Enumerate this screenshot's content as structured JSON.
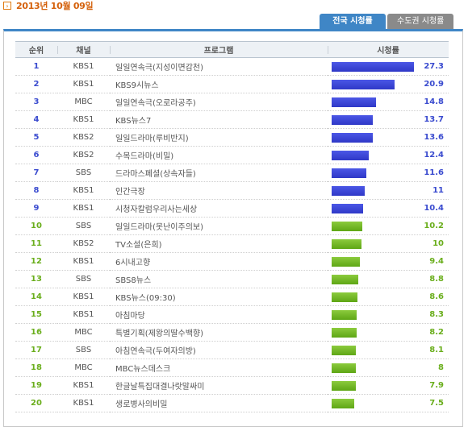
{
  "date": "2013년 10월 09일",
  "tabs": [
    {
      "label": "전국 시청률",
      "active": true
    },
    {
      "label": "수도권 시청률",
      "active": false
    }
  ],
  "columns": {
    "rank": "순위",
    "channel": "채널",
    "program": "프로그램",
    "rating": "시청률"
  },
  "colors": {
    "top_bar": "#3a45d8",
    "rest_bar": "#74b82a",
    "tab_active": "#3f86c6"
  },
  "max_rating": 27.3,
  "rows": [
    {
      "rank": "1",
      "channel": "KBS1",
      "program": "일일연속극(지성이면감천)",
      "rating": 27.3
    },
    {
      "rank": "2",
      "channel": "KBS1",
      "program": "KBS9시뉴스",
      "rating": 20.9
    },
    {
      "rank": "3",
      "channel": "MBC",
      "program": "일일연속극(오로라공주)",
      "rating": 14.8
    },
    {
      "rank": "4",
      "channel": "KBS1",
      "program": "KBS뉴스7",
      "rating": 13.7
    },
    {
      "rank": "5",
      "channel": "KBS2",
      "program": "일일드라마(루비반지)",
      "rating": 13.6
    },
    {
      "rank": "6",
      "channel": "KBS2",
      "program": "수목드라마(비밀)",
      "rating": 12.4
    },
    {
      "rank": "7",
      "channel": "SBS",
      "program": "드라마스페셜(상속자들)",
      "rating": 11.6
    },
    {
      "rank": "8",
      "channel": "KBS1",
      "program": "인간극장",
      "rating": 11
    },
    {
      "rank": "9",
      "channel": "KBS1",
      "program": "시청자칼럼우리사는세상",
      "rating": 10.4
    },
    {
      "rank": "10",
      "channel": "SBS",
      "program": "일일드라마(못난이주의보)",
      "rating": 10.2
    },
    {
      "rank": "11",
      "channel": "KBS2",
      "program": "TV소설(은희)",
      "rating": 10
    },
    {
      "rank": "12",
      "channel": "KBS1",
      "program": "6시내고향",
      "rating": 9.4
    },
    {
      "rank": "13",
      "channel": "SBS",
      "program": "SBS8뉴스",
      "rating": 8.8
    },
    {
      "rank": "14",
      "channel": "KBS1",
      "program": "KBS뉴스(09:30)",
      "rating": 8.6
    },
    {
      "rank": "15",
      "channel": "KBS1",
      "program": "아침마당",
      "rating": 8.3
    },
    {
      "rank": "16",
      "channel": "MBC",
      "program": "특별기획(제왕의딸수백향)",
      "rating": 8.2
    },
    {
      "rank": "17",
      "channel": "SBS",
      "program": "아침연속극(두여자의방)",
      "rating": 8.1
    },
    {
      "rank": "18",
      "channel": "MBC",
      "program": "MBC뉴스데스크",
      "rating": 8
    },
    {
      "rank": "19",
      "channel": "KBS1",
      "program": "한글날특집대결나랏말싸미",
      "rating": 7.9
    },
    {
      "rank": "20",
      "channel": "KBS1",
      "program": "생로병사의비밀",
      "rating": 7.5
    }
  ]
}
